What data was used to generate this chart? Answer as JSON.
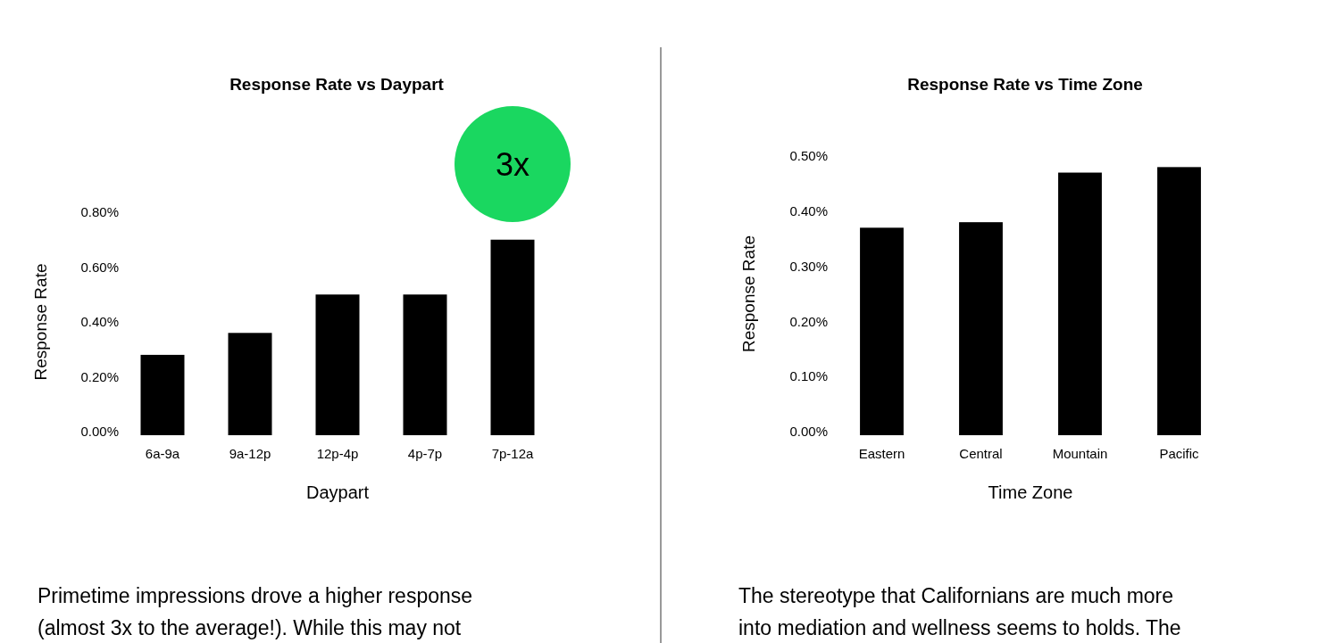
{
  "chart_data": [
    {
      "type": "bar",
      "title": "Response Rate vs Daypart",
      "xlabel": "Daypart",
      "ylabel": "Response Rate",
      "categories": [
        "6a-9a",
        "9a-12p",
        "12p-4p",
        "4p-7p",
        "7p-12a"
      ],
      "values": [
        0.28,
        0.36,
        0.5,
        0.5,
        0.7
      ],
      "color": "#000000",
      "ylim": [
        0,
        0.8
      ],
      "yticks": [
        {
          "value": 0,
          "label": "0.00%"
        },
        {
          "value": 0.2,
          "label": "0.20%"
        },
        {
          "value": 0.4,
          "label": "0.40%"
        },
        {
          "value": 0.6,
          "label": "0.60%"
        },
        {
          "value": 0.8,
          "label": "0.80%"
        }
      ],
      "grid": false,
      "annotations": [
        "3x",
        "Primetime impressions drove a higher response (almost 3x to the average!). While this may not"
      ]
    },
    {
      "type": "bar",
      "title": "Response Rate vs Time Zone",
      "xlabel": "Time Zone",
      "ylabel": "Response Rate",
      "categories": [
        "Eastern",
        "Central",
        "Mountain",
        "Pacific"
      ],
      "values": [
        0.37,
        0.38,
        0.47,
        0.48
      ],
      "color": "#000000",
      "ylim": [
        0,
        0.5
      ],
      "yticks": [
        {
          "value": 0,
          "label": "0.00%"
        },
        {
          "value": 0.1,
          "label": "0.10%"
        },
        {
          "value": 0.2,
          "label": "0.20%"
        },
        {
          "value": 0.3,
          "label": "0.30%"
        },
        {
          "value": 0.4,
          "label": "0.40%"
        },
        {
          "value": 0.5,
          "label": "0.50%"
        }
      ],
      "grid": false,
      "annotations": [
        "The stereotype that Californians are much more into mediation and wellness seems to holds. The"
      ]
    }
  ]
}
